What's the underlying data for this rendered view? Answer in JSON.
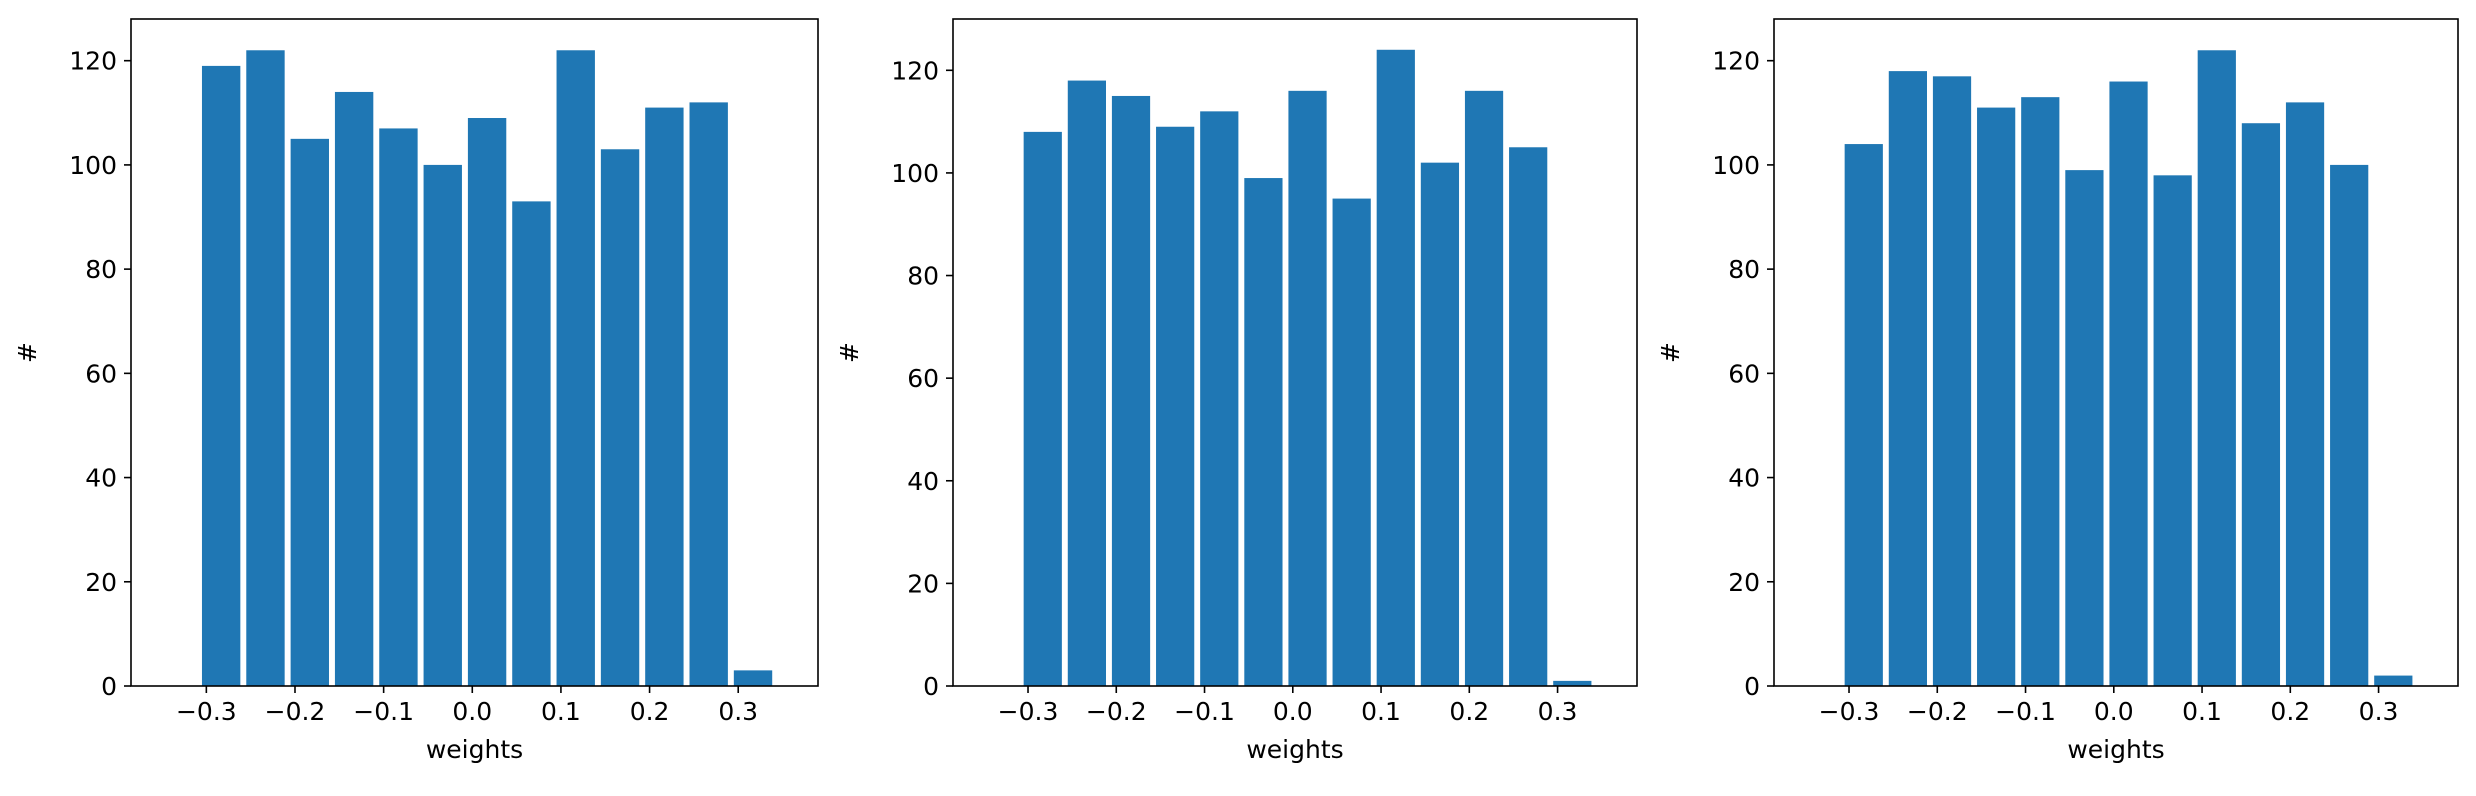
{
  "figure": {
    "bar_color": "#1f77b4",
    "background": "#ffffff",
    "axis_color": "#000000"
  },
  "chart_data": [
    {
      "type": "bar",
      "xlabel": "weights",
      "ylabel": "#",
      "xlim": [
        -0.385,
        0.39
      ],
      "ylim": [
        0,
        128
      ],
      "bar_width": 0.0433,
      "x": [
        -0.2833,
        -0.2333,
        -0.1833,
        -0.1333,
        -0.0833,
        -0.0333,
        0.0167,
        0.0667,
        0.1167,
        0.1667,
        0.2167,
        0.2667,
        0.3167
      ],
      "values": [
        119,
        122,
        105,
        114,
        107,
        100,
        109,
        93,
        122,
        103,
        111,
        112,
        3
      ],
      "xticks": [
        -0.3,
        -0.2,
        -0.1,
        0.0,
        0.1,
        0.2,
        0.3
      ],
      "xtick_labels": [
        "−0.3",
        "−0.2",
        "−0.1",
        "0.0",
        "0.1",
        "0.2",
        "0.3"
      ],
      "yticks": [
        0,
        20,
        40,
        60,
        80,
        100,
        120
      ],
      "ytick_labels": [
        "0",
        "20",
        "40",
        "60",
        "80",
        "100",
        "120"
      ],
      "grid": false,
      "legend": false
    },
    {
      "type": "bar",
      "xlabel": "weights",
      "ylabel": "#",
      "xlim": [
        -0.385,
        0.39
      ],
      "ylim": [
        0,
        130
      ],
      "bar_width": 0.0433,
      "x": [
        -0.2833,
        -0.2333,
        -0.1833,
        -0.1333,
        -0.0833,
        -0.0333,
        0.0167,
        0.0667,
        0.1167,
        0.1667,
        0.2167,
        0.2667,
        0.3167
      ],
      "values": [
        108,
        118,
        115,
        109,
        112,
        99,
        116,
        95,
        124,
        102,
        116,
        105,
        1
      ],
      "xticks": [
        -0.3,
        -0.2,
        -0.1,
        0.0,
        0.1,
        0.2,
        0.3
      ],
      "xtick_labels": [
        "−0.3",
        "−0.2",
        "−0.1",
        "0.0",
        "0.1",
        "0.2",
        "0.3"
      ],
      "yticks": [
        0,
        20,
        40,
        60,
        80,
        100,
        120
      ],
      "ytick_labels": [
        "0",
        "20",
        "40",
        "60",
        "80",
        "100",
        "120"
      ],
      "grid": false,
      "legend": false
    },
    {
      "type": "bar",
      "xlabel": "weights",
      "ylabel": "#",
      "xlim": [
        -0.385,
        0.39
      ],
      "ylim": [
        0,
        128
      ],
      "bar_width": 0.0433,
      "x": [
        -0.2833,
        -0.2333,
        -0.1833,
        -0.1333,
        -0.0833,
        -0.0333,
        0.0167,
        0.0667,
        0.1167,
        0.1667,
        0.2167,
        0.2667,
        0.3167
      ],
      "values": [
        104,
        118,
        117,
        111,
        113,
        99,
        116,
        98,
        122,
        108,
        112,
        100,
        2
      ],
      "xticks": [
        -0.3,
        -0.2,
        -0.1,
        0.0,
        0.1,
        0.2,
        0.3
      ],
      "xtick_labels": [
        "−0.3",
        "−0.2",
        "−0.1",
        "0.0",
        "0.1",
        "0.2",
        "0.3"
      ],
      "yticks": [
        0,
        20,
        40,
        60,
        80,
        100,
        120
      ],
      "ytick_labels": [
        "0",
        "20",
        "40",
        "60",
        "80",
        "100",
        "120"
      ],
      "grid": false,
      "legend": false
    }
  ]
}
